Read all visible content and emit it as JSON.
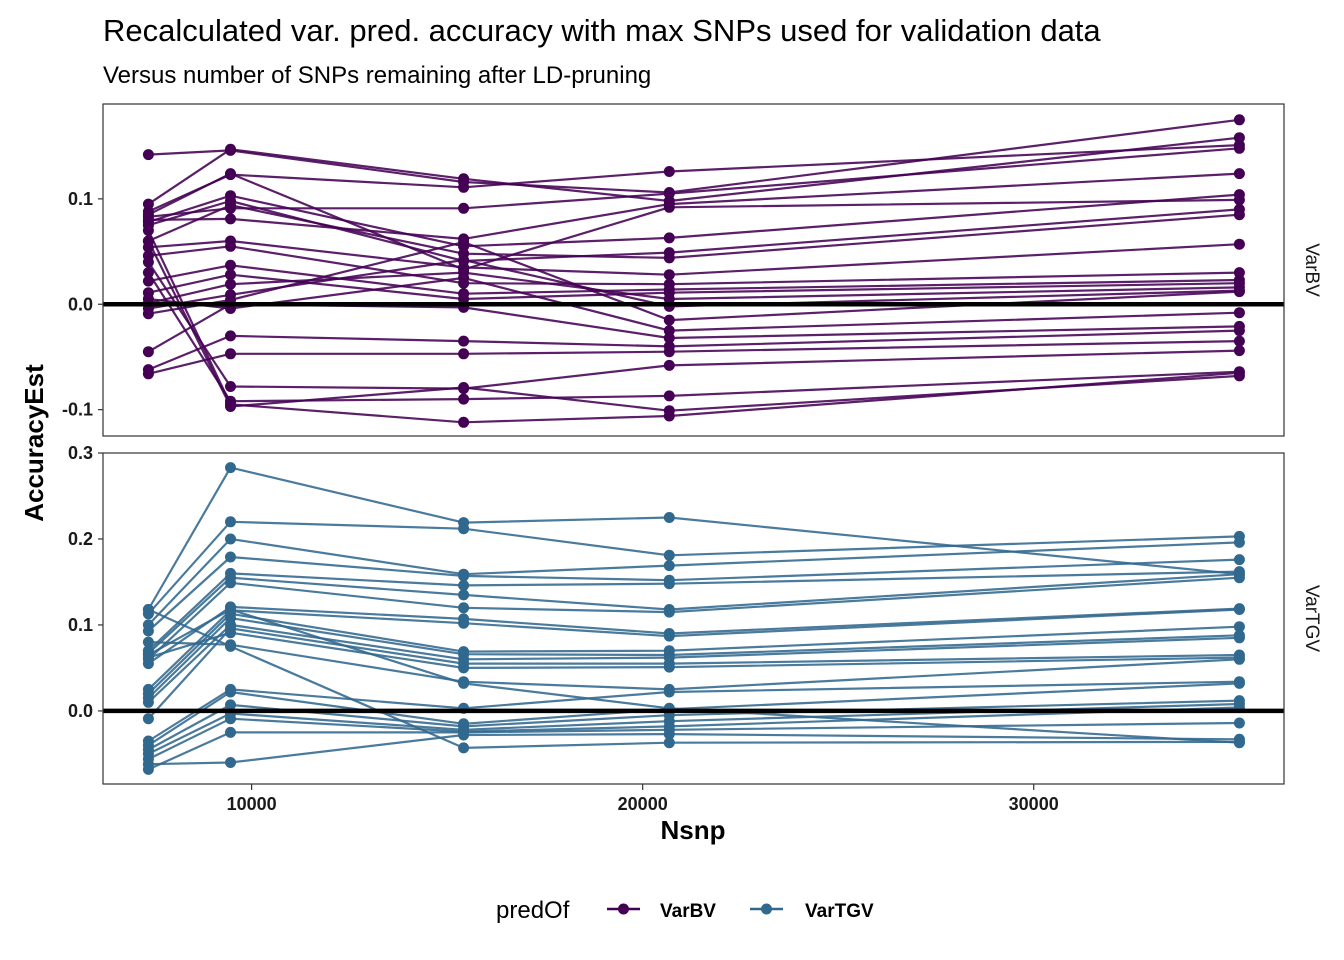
{
  "chart_data": {
    "type": "line",
    "title": "Recalculated var. pred. accuracy with max SNPs used for validation data",
    "subtitle": "Versus number of SNPs remaining after LD-pruning",
    "xlabel": "Nsnp",
    "ylabel": "AccuracyEst",
    "x_ticks": [
      10000,
      20000,
      30000
    ],
    "x_tick_labels": [
      "10000",
      "20000",
      "30000"
    ],
    "xlim": [
      6200,
      36400
    ],
    "x": [
      7360,
      9460,
      15420,
      20680,
      35260
    ],
    "legend": {
      "title": "predOf",
      "position": "bottom",
      "entries": [
        {
          "label": "VarBV",
          "color": "#440154"
        },
        {
          "label": "VarTGV",
          "color": "#31688E"
        }
      ]
    },
    "reference_line": {
      "y": 0,
      "color": "#000000"
    },
    "panels": [
      {
        "strip_label": "VarBV",
        "color": "#440154",
        "ylim": [
          -0.125,
          0.19
        ],
        "y_ticks": [
          0.1,
          0.0,
          -0.1
        ],
        "y_tick_labels": [
          "0.1",
          "0.0",
          "-0.1"
        ],
        "series": [
          {
            "values": [
              0.142,
              0.146,
              0.116,
              0.106,
              0.175
            ]
          },
          {
            "values": [
              0.095,
              0.147,
              0.119,
              0.098,
              0.158
            ]
          },
          {
            "values": [
              0.088,
              0.123,
              0.111,
              0.126,
              0.151
            ]
          },
          {
            "values": [
              0.083,
              0.091,
              0.091,
              0.105,
              0.148
            ]
          },
          {
            "values": [
              0.08,
              0.081,
              0.062,
              0.095,
              0.124
            ]
          },
          {
            "values": [
              0.078,
              0.103,
              0.055,
              0.063,
              0.104
            ]
          },
          {
            "values": [
              0.085,
              0.124,
              0.033,
              0.092,
              0.099
            ]
          },
          {
            "values": [
              0.075,
              0.098,
              0.041,
              0.049,
              0.09
            ]
          },
          {
            "values": [
              0.06,
              0.094,
              0.048,
              0.044,
              0.085
            ]
          },
          {
            "values": [
              0.054,
              0.06,
              0.035,
              0.028,
              0.057
            ]
          },
          {
            "values": [
              0.046,
              0.055,
              0.02,
              0.019,
              0.03
            ]
          },
          {
            "values": [
              0.022,
              0.037,
              0.01,
              0.014,
              0.023
            ]
          },
          {
            "values": [
              0.011,
              0.028,
              0.005,
              0.011,
              0.02
            ]
          },
          {
            "values": [
              0.001,
              0.019,
              0.03,
              0.005,
              0.016
            ]
          },
          {
            "values": [
              -0.004,
              0.009,
              0.042,
              -0.002,
              0.013
            ]
          },
          {
            "values": [
              -0.009,
              0.004,
              0.059,
              -0.015,
              0.012
            ]
          },
          {
            "values": [
              0.005,
              -0.004,
              0.025,
              -0.025,
              -0.008
            ]
          },
          {
            "values": [
              -0.045,
              0.0,
              -0.003,
              -0.032,
              -0.021
            ]
          },
          {
            "values": [
              -0.062,
              -0.03,
              -0.035,
              -0.04,
              -0.025
            ]
          },
          {
            "values": [
              -0.066,
              -0.047,
              -0.047,
              -0.045,
              -0.035
            ]
          },
          {
            "values": [
              0.04,
              -0.078,
              -0.08,
              -0.058,
              -0.044
            ]
          },
          {
            "values": [
              0.03,
              -0.092,
              -0.09,
              -0.087,
              -0.064
            ]
          },
          {
            "values": [
              0.06,
              -0.097,
              -0.079,
              -0.101,
              -0.068
            ]
          },
          {
            "values": [
              0.07,
              -0.095,
              -0.112,
              -0.106,
              -0.065
            ]
          }
        ]
      },
      {
        "strip_label": "VarTGV",
        "color": "#31688E",
        "ylim": [
          -0.085,
          0.3
        ],
        "y_ticks": [
          0.3,
          0.2,
          0.1,
          0.0
        ],
        "y_tick_labels": [
          "0.3",
          "0.2",
          "0.1",
          "0.0"
        ],
        "series": [
          {
            "values": [
              0.118,
              0.283,
              0.219,
              0.225,
              0.159
            ]
          },
          {
            "values": [
              0.113,
              0.22,
              0.212,
              0.181,
              0.203
            ]
          },
          {
            "values": [
              0.1,
              0.2,
              0.159,
              0.169,
              0.196
            ]
          },
          {
            "values": [
              0.093,
              0.179,
              0.157,
              0.152,
              0.176
            ]
          },
          {
            "values": [
              0.07,
              0.16,
              0.146,
              0.148,
              0.162
            ]
          },
          {
            "values": [
              0.067,
              0.155,
              0.135,
              0.118,
              0.159
            ]
          },
          {
            "values": [
              0.06,
              0.149,
              0.12,
              0.115,
              0.155
            ]
          },
          {
            "values": [
              0.055,
              0.121,
              0.107,
              0.09,
              0.119
            ]
          },
          {
            "values": [
              0.025,
              0.117,
              0.102,
              0.087,
              0.118
            ]
          },
          {
            "values": [
              0.02,
              0.113,
              0.069,
              0.07,
              0.098
            ]
          },
          {
            "values": [
              0.015,
              0.108,
              0.066,
              0.065,
              0.088
            ]
          },
          {
            "values": [
              0.01,
              0.1,
              0.06,
              0.062,
              0.085
            ]
          },
          {
            "values": [
              -0.009,
              0.096,
              0.055,
              0.055,
              0.065
            ]
          },
          {
            "values": [
              0.062,
              0.091,
              0.05,
              0.051,
              0.062
            ]
          },
          {
            "values": [
              0.08,
              0.077,
              0.034,
              0.025,
              0.06
            ]
          },
          {
            "values": [
              -0.035,
              0.025,
              0.003,
              0.022,
              0.034
            ]
          },
          {
            "values": [
              -0.04,
              0.022,
              -0.015,
              0.002,
              0.032
            ]
          },
          {
            "values": [
              -0.045,
              0.007,
              -0.018,
              -0.005,
              0.012
            ]
          },
          {
            "values": [
              -0.05,
              -0.003,
              -0.022,
              -0.012,
              0.008
            ]
          },
          {
            "values": [
              -0.056,
              -0.009,
              -0.024,
              -0.018,
              0.004
            ]
          },
          {
            "values": [
              -0.068,
              -0.025,
              -0.025,
              -0.022,
              -0.014
            ]
          },
          {
            "values": [
              -0.062,
              -0.06,
              -0.028,
              -0.027,
              -0.033
            ]
          },
          {
            "values": [
              0.118,
              0.075,
              -0.043,
              -0.037,
              -0.036
            ]
          },
          {
            "values": [
              0.065,
              0.118,
              0.032,
              0.003,
              -0.037
            ]
          }
        ]
      }
    ]
  }
}
